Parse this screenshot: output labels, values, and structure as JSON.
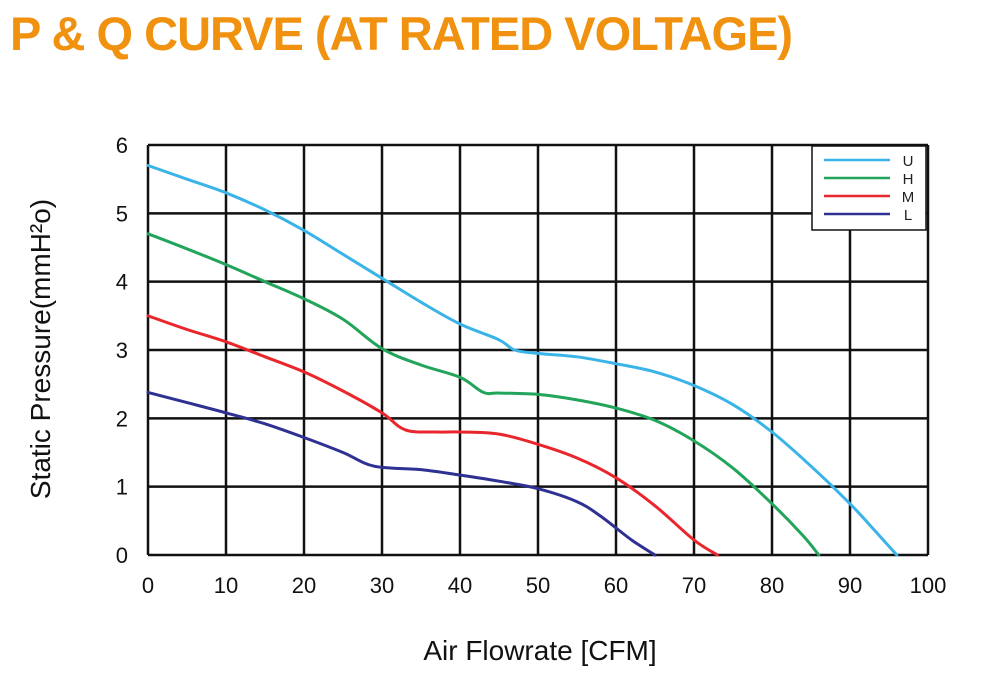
{
  "chart_data": {
    "type": "line",
    "title": "P & Q CURVE (AT RATED VOLTAGE)",
    "xlabel": "Air  Flowrate   [CFM]",
    "ylabel": "Static Pressure(mmH²o)",
    "xlim": [
      0,
      100
    ],
    "ylim": [
      0,
      6
    ],
    "xticks": [
      0,
      10,
      20,
      30,
      40,
      50,
      60,
      70,
      80,
      90,
      100
    ],
    "yticks": [
      0,
      1,
      2,
      3,
      4,
      5,
      6
    ],
    "grid": true,
    "legend_position": "top-right",
    "series": [
      {
        "name": "U",
        "color": "#3ab4e8",
        "x": [
          0,
          5,
          10,
          15,
          20,
          25,
          30,
          35,
          40,
          45,
          47,
          50,
          55,
          60,
          65,
          70,
          75,
          80,
          85,
          90,
          93,
          96
        ],
        "y": [
          5.7,
          5.5,
          5.3,
          5.05,
          4.75,
          4.4,
          4.05,
          3.7,
          3.38,
          3.15,
          3.0,
          2.95,
          2.9,
          2.8,
          2.68,
          2.48,
          2.2,
          1.8,
          1.3,
          0.75,
          0.38,
          0
        ]
      },
      {
        "name": "H",
        "color": "#22a45a",
        "x": [
          0,
          5,
          10,
          15,
          20,
          25,
          30,
          35,
          40,
          43,
          45,
          50,
          55,
          60,
          65,
          70,
          75,
          80,
          84,
          86
        ],
        "y": [
          4.7,
          4.48,
          4.25,
          4.0,
          3.75,
          3.45,
          3.02,
          2.78,
          2.6,
          2.38,
          2.37,
          2.35,
          2.27,
          2.15,
          1.97,
          1.67,
          1.27,
          0.75,
          0.28,
          0
        ]
      },
      {
        "name": "M",
        "color": "#e8262c",
        "x": [
          0,
          5,
          10,
          15,
          20,
          25,
          30,
          33,
          37,
          40,
          45,
          50,
          55,
          60,
          65,
          70,
          73
        ],
        "y": [
          3.5,
          3.3,
          3.12,
          2.9,
          2.68,
          2.4,
          2.08,
          1.83,
          1.8,
          1.8,
          1.77,
          1.62,
          1.42,
          1.13,
          0.72,
          0.22,
          0
        ]
      },
      {
        "name": "L",
        "color": "#2e3192",
        "x": [
          0,
          5,
          10,
          15,
          20,
          25,
          29,
          35,
          40,
          45,
          50,
          55,
          58,
          62,
          65
        ],
        "y": [
          2.38,
          2.23,
          2.08,
          1.92,
          1.72,
          1.5,
          1.3,
          1.25,
          1.17,
          1.08,
          0.97,
          0.78,
          0.57,
          0.22,
          0
        ]
      }
    ]
  }
}
